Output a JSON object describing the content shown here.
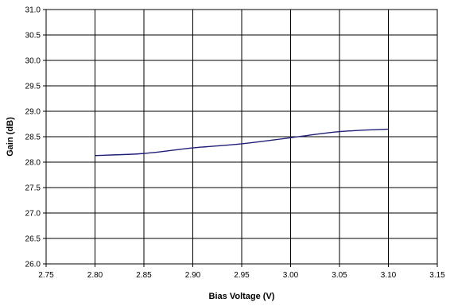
{
  "chart_data": {
    "type": "line",
    "xlabel": "Bias Voltage (V)",
    "ylabel": "Gain (dB)",
    "xlim": [
      2.75,
      3.15
    ],
    "ylim": [
      26.0,
      31.0
    ],
    "x_ticks": [
      "2.75",
      "2.80",
      "2.85",
      "2.90",
      "2.95",
      "3.00",
      "3.05",
      "3.10",
      "3.15"
    ],
    "y_ticks": [
      "31.0",
      "30.5",
      "30.0",
      "29.5",
      "29.0",
      "28.5",
      "28.0",
      "27.5",
      "27.0",
      "26.5",
      "26.0"
    ],
    "grid": true,
    "series": [
      {
        "color": "#1f1f7a",
        "x": [
          2.8,
          2.85,
          2.9,
          2.95,
          3.0,
          3.05,
          3.1
        ],
        "y": [
          28.13,
          28.17,
          28.28,
          28.36,
          28.48,
          28.6,
          28.65
        ]
      }
    ]
  },
  "colors": {
    "grid": "#000000",
    "line": "#1f1f7a"
  }
}
